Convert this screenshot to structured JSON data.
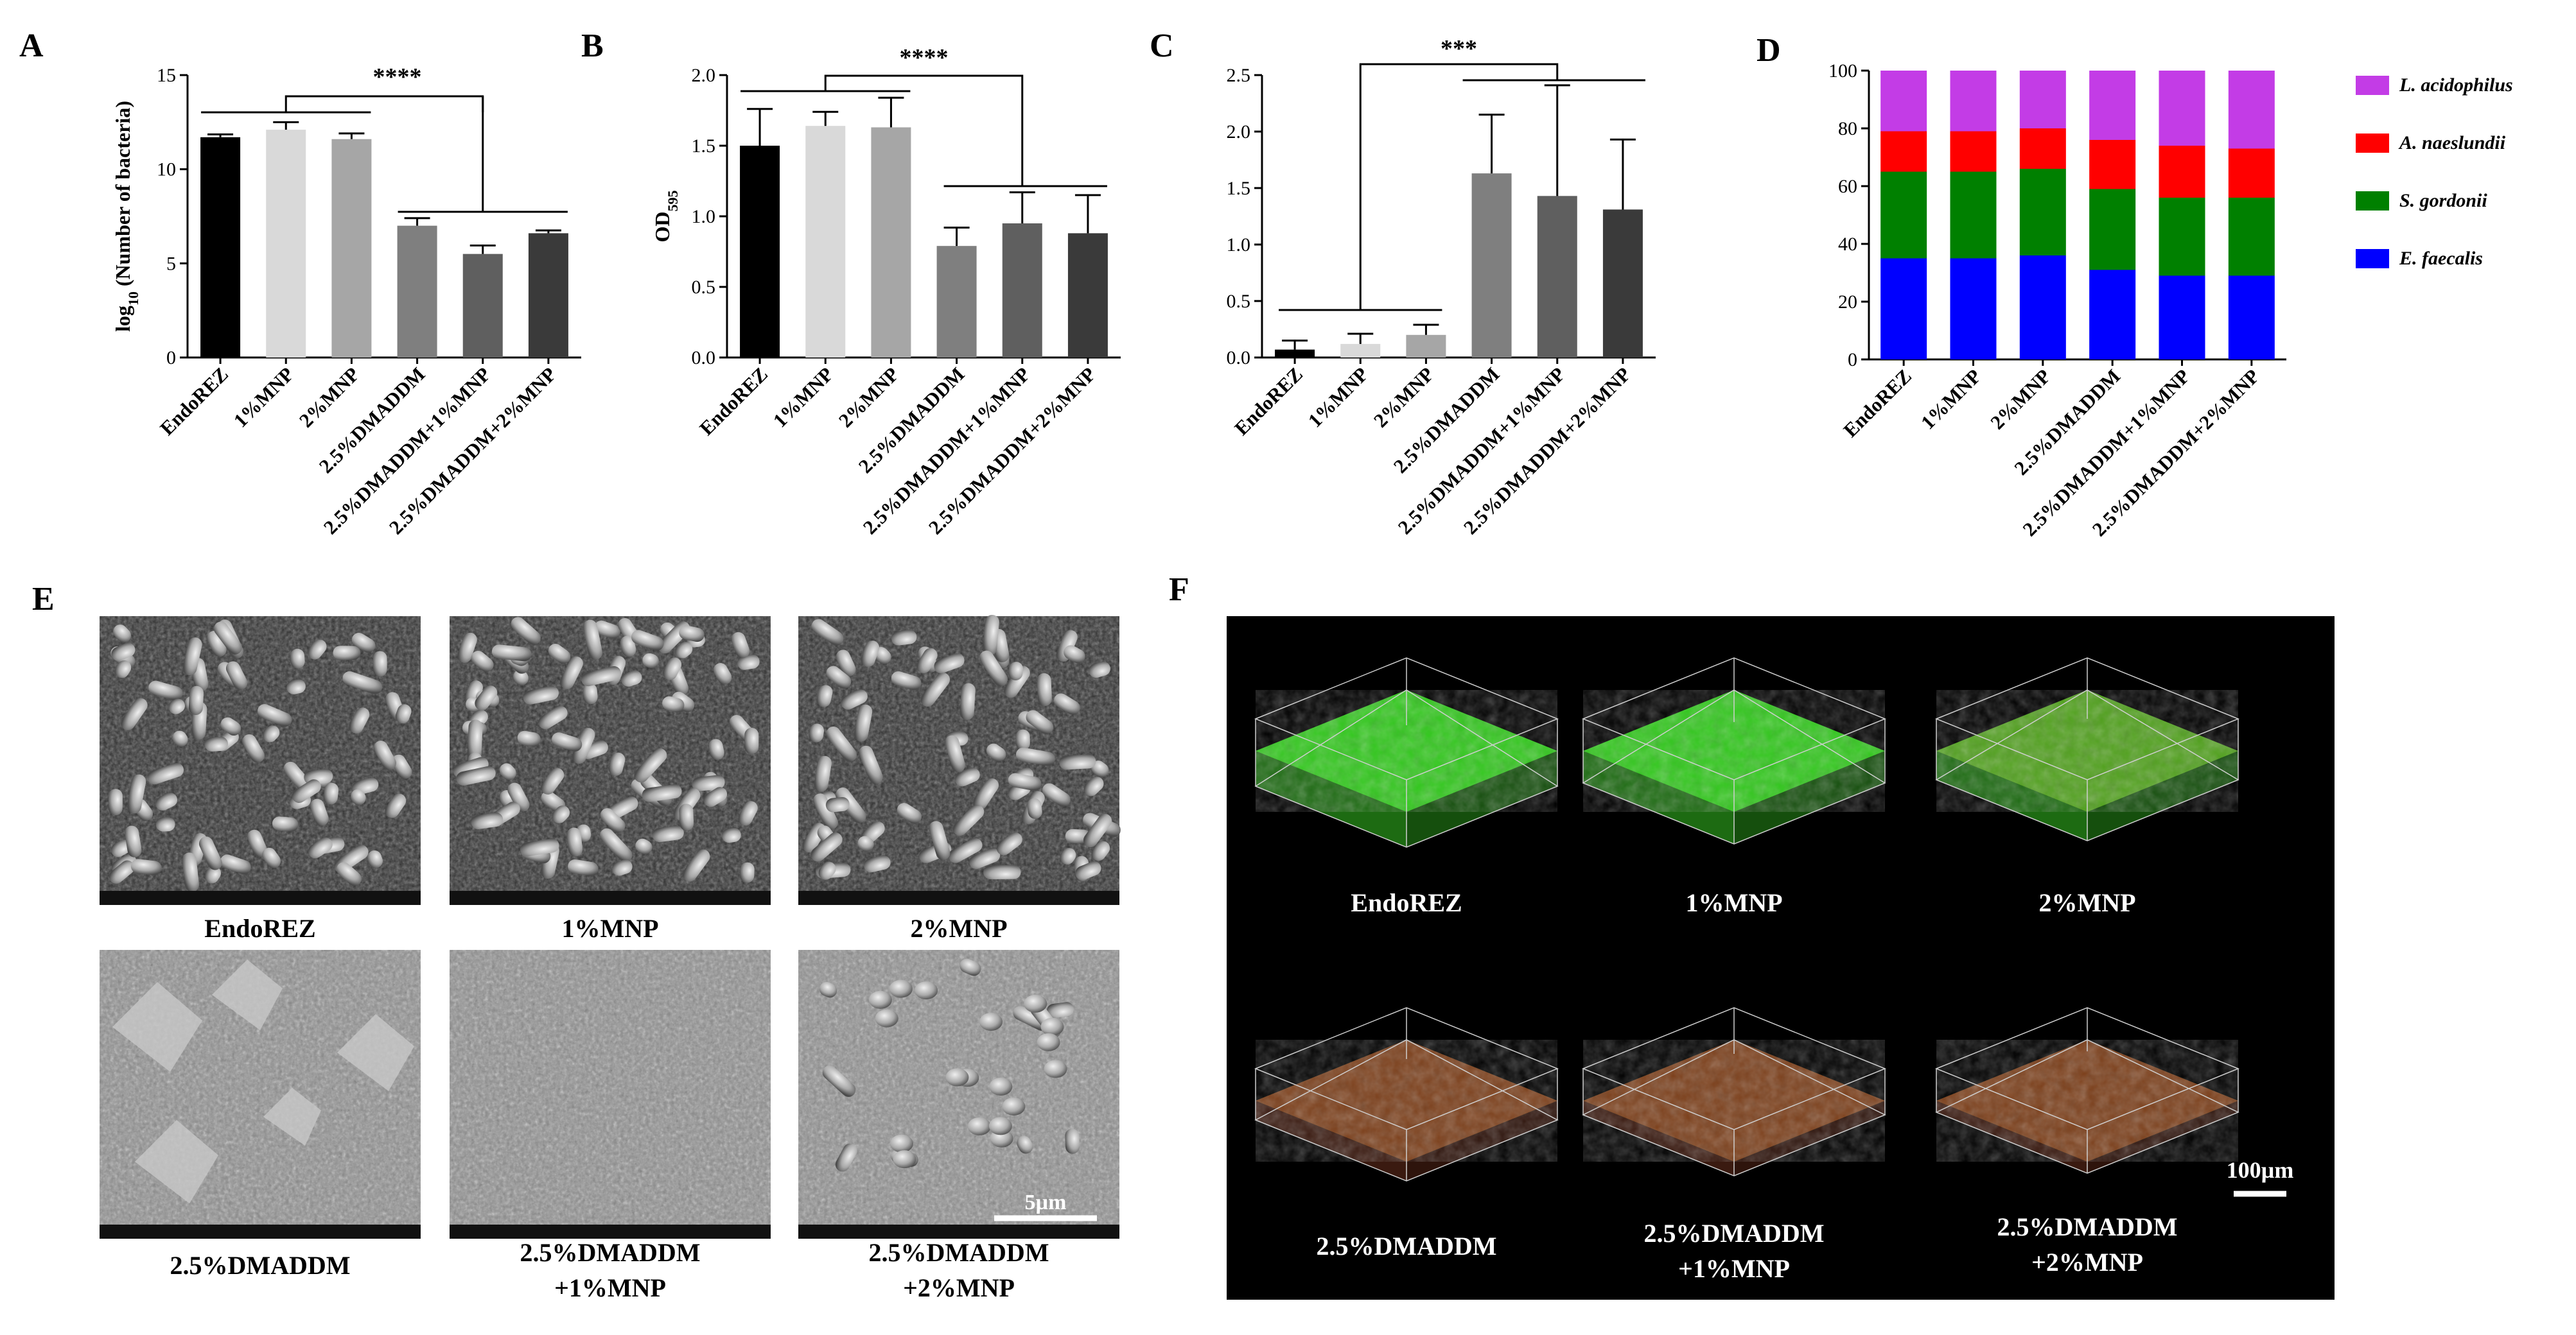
{
  "panel_letters": {
    "a": "A",
    "b": "B",
    "c": "C",
    "d": "D",
    "e": "E",
    "f": "F"
  },
  "categories": [
    "EndoREZ",
    "1%MNP",
    "2%MNP",
    "2.5%DMADDM",
    "2.5%DMADDM+1%MNP",
    "2.5%DMADDM+2%MNP"
  ],
  "chart_data": [
    {
      "id": "A",
      "type": "bar",
      "ylabel": {
        "prefix": "log",
        "sub": "10",
        "suffix": " (Number of bacteria)"
      },
      "ylim": [
        0,
        15
      ],
      "yticks": [
        "0",
        "5",
        "10",
        "15"
      ],
      "values": [
        11.7,
        12.1,
        11.6,
        7.0,
        5.5,
        6.6
      ],
      "errors": [
        0.15,
        0.4,
        0.3,
        0.4,
        0.45,
        0.15
      ],
      "bar_colors": [
        "#000000",
        "#d9d9d9",
        "#a6a6a6",
        "#7f7f7f",
        "#5f5f5f",
        "#3a3a3a"
      ],
      "significance": "****"
    },
    {
      "id": "B",
      "type": "bar",
      "ylabel": {
        "prefix": "OD",
        "sub": "595",
        "suffix": ""
      },
      "ylim": [
        0,
        2.0
      ],
      "yticks": [
        "0.0",
        "0.5",
        "1.0",
        "1.5",
        "2.0"
      ],
      "values": [
        1.5,
        1.64,
        1.63,
        0.79,
        0.95,
        0.88
      ],
      "errors": [
        0.26,
        0.1,
        0.21,
        0.13,
        0.22,
        0.27
      ],
      "bar_colors": [
        "#000000",
        "#d9d9d9",
        "#a6a6a6",
        "#7f7f7f",
        "#5f5f5f",
        "#3a3a3a"
      ],
      "significance": "****"
    },
    {
      "id": "C",
      "type": "bar",
      "ylim": [
        0,
        2.5
      ],
      "yticks": [
        "0.0",
        "0.5",
        "1.0",
        "1.5",
        "2.0",
        "2.5"
      ],
      "values": [
        0.07,
        0.12,
        0.2,
        1.63,
        1.43,
        1.31
      ],
      "errors": [
        0.08,
        0.09,
        0.09,
        0.52,
        0.98,
        0.62
      ],
      "bar_colors": [
        "#000000",
        "#d9d9d9",
        "#a6a6a6",
        "#7f7f7f",
        "#5f5f5f",
        "#3a3a3a"
      ],
      "significance": "***"
    },
    {
      "id": "D",
      "type": "bar",
      "stacked": true,
      "ylim": [
        0,
        100
      ],
      "yticks": [
        "0",
        "20",
        "40",
        "60",
        "80",
        "100"
      ],
      "series": [
        {
          "name": "E. faecalis",
          "color": "#0000ff",
          "values": [
            35,
            35,
            36,
            31,
            29,
            29
          ]
        },
        {
          "name": "S. gordonii",
          "color": "#008000",
          "values": [
            30,
            30,
            30,
            28,
            27,
            27
          ]
        },
        {
          "name": "A. naeslundii",
          "color": "#ff0000",
          "values": [
            14,
            14,
            14,
            17,
            18,
            17
          ]
        },
        {
          "name": "L. acidophilus",
          "color": "#c33ce6",
          "values": [
            21,
            21,
            20,
            24,
            26,
            27
          ]
        }
      ],
      "legend": [
        "L. acidophilus",
        "A. naeslundii",
        "S. gordonii",
        "E. faecalis"
      ]
    }
  ],
  "sem_labels": [
    [
      "EndoREZ"
    ],
    [
      "1%MNP"
    ],
    [
      "2%MNP"
    ],
    [
      "2.5%DMADDM"
    ],
    [
      "2.5%DMADDM",
      "+1%MNP"
    ],
    [
      "2.5%DMADDM",
      "+2%MNP"
    ]
  ],
  "sem_scale": "5µm",
  "clsm_labels": [
    [
      "EndoREZ"
    ],
    [
      "1%MNP"
    ],
    [
      "2%MNP"
    ],
    [
      "2.5%DMADDM"
    ],
    [
      "2.5%DMADDM",
      "+1%MNP"
    ],
    [
      "2.5%DMADDM",
      "+2%MNP"
    ]
  ],
  "clsm_scale": "100µm",
  "colors": {
    "clsm_background": "#000000",
    "biofilm_live": "#31c81c",
    "biofilm_dead": "#b02a1a",
    "sem_dark": "#2f2f2f",
    "sem_light": "#b8b8b8"
  }
}
